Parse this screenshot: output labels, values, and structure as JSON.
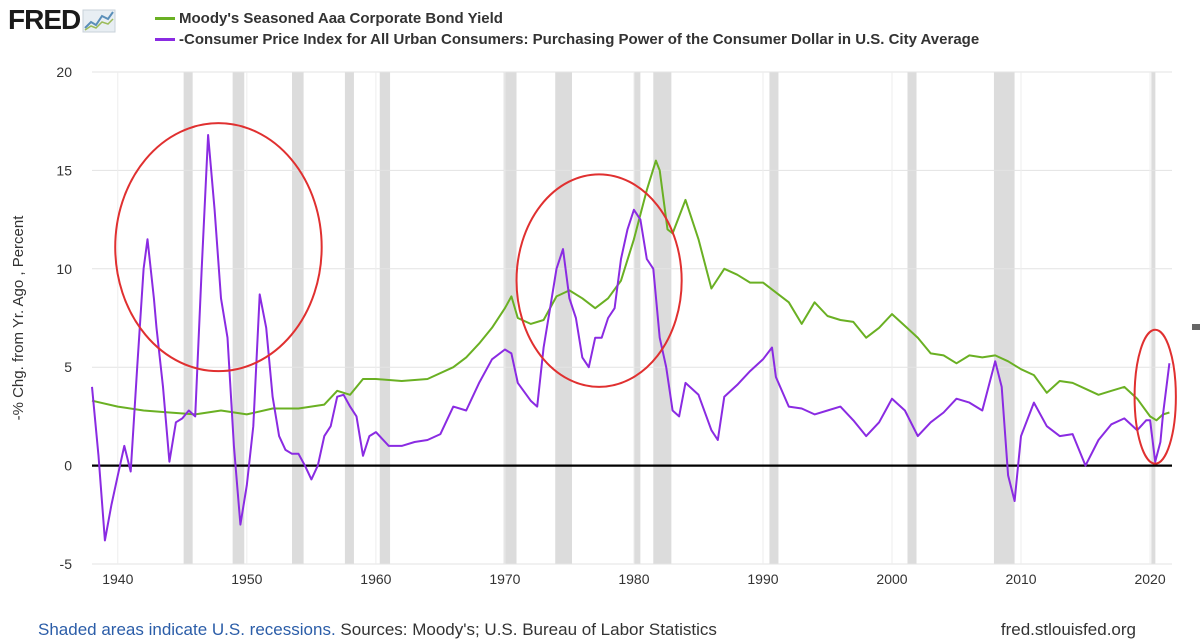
{
  "logo": {
    "text": "FRED",
    "icon": "fred-line-chart-icon"
  },
  "legend": [
    {
      "label": "Moody's Seasoned Aaa Corporate Bond Yield",
      "color": "#6ab023"
    },
    {
      "label": "-Consumer Price Index for All Urban Consumers: Purchasing Power of the Consumer Dollar in U.S. City Average",
      "color": "#8a2be2"
    }
  ],
  "footer": {
    "recession_note": "Shaded areas indicate U.S. recessions.",
    "sources": "Sources: Moody's; U.S. Bureau of Labor Statistics",
    "site": "fred.stlouisfed.org"
  },
  "chart_data": {
    "type": "line",
    "ylabel": "-% Chg. from Yr. Ago , Percent",
    "xlim": [
      1938,
      2021.7
    ],
    "ylim": [
      -5,
      20
    ],
    "x_ticks": [
      1940,
      1950,
      1960,
      1970,
      1980,
      1990,
      2000,
      2010,
      2020
    ],
    "y_ticks": [
      -5,
      0,
      5,
      10,
      15,
      20
    ],
    "grid": true,
    "zero_line": true,
    "recessions": [
      [
        1945.1,
        1945.8
      ],
      [
        1948.9,
        1949.8
      ],
      [
        1953.5,
        1954.4
      ],
      [
        1957.6,
        1958.3
      ],
      [
        1960.3,
        1961.1
      ],
      [
        1969.9,
        1970.9
      ],
      [
        1973.9,
        1975.2
      ],
      [
        1980.0,
        1980.5
      ],
      [
        1981.5,
        1982.9
      ],
      [
        1990.5,
        1991.2
      ],
      [
        2001.2,
        2001.9
      ],
      [
        2007.9,
        2009.5
      ],
      [
        2020.1,
        2020.4
      ]
    ],
    "series": [
      {
        "name": "Moody's Seasoned Aaa Corporate Bond Yield",
        "color": "#6ab023",
        "points": [
          [
            1938,
            3.3
          ],
          [
            1940,
            3.0
          ],
          [
            1942,
            2.8
          ],
          [
            1944,
            2.7
          ],
          [
            1946,
            2.6
          ],
          [
            1948,
            2.8
          ],
          [
            1950,
            2.6
          ],
          [
            1952,
            2.9
          ],
          [
            1954,
            2.9
          ],
          [
            1956,
            3.1
          ],
          [
            1957,
            3.8
          ],
          [
            1958,
            3.6
          ],
          [
            1959,
            4.4
          ],
          [
            1960,
            4.4
          ],
          [
            1962,
            4.3
          ],
          [
            1964,
            4.4
          ],
          [
            1966,
            5.0
          ],
          [
            1967,
            5.5
          ],
          [
            1968,
            6.2
          ],
          [
            1969,
            7.0
          ],
          [
            1970,
            8.0
          ],
          [
            1970.5,
            8.6
          ],
          [
            1971,
            7.5
          ],
          [
            1972,
            7.2
          ],
          [
            1973,
            7.4
          ],
          [
            1974,
            8.6
          ],
          [
            1975,
            8.9
          ],
          [
            1976,
            8.5
          ],
          [
            1977,
            8.0
          ],
          [
            1978,
            8.5
          ],
          [
            1979,
            9.4
          ],
          [
            1980,
            11.5
          ],
          [
            1981,
            14.0
          ],
          [
            1981.7,
            15.5
          ],
          [
            1982,
            15.0
          ],
          [
            1982.6,
            12.0
          ],
          [
            1983,
            11.8
          ],
          [
            1984,
            13.5
          ],
          [
            1985,
            11.5
          ],
          [
            1986,
            9.0
          ],
          [
            1987,
            10.0
          ],
          [
            1988,
            9.7
          ],
          [
            1989,
            9.3
          ],
          [
            1990,
            9.3
          ],
          [
            1991,
            8.8
          ],
          [
            1992,
            8.3
          ],
          [
            1993,
            7.2
          ],
          [
            1994,
            8.3
          ],
          [
            1995,
            7.6
          ],
          [
            1996,
            7.4
          ],
          [
            1997,
            7.3
          ],
          [
            1998,
            6.5
          ],
          [
            1999,
            7.0
          ],
          [
            2000,
            7.7
          ],
          [
            2001,
            7.1
          ],
          [
            2002,
            6.5
          ],
          [
            2003,
            5.7
          ],
          [
            2004,
            5.6
          ],
          [
            2005,
            5.2
          ],
          [
            2006,
            5.6
          ],
          [
            2007,
            5.5
          ],
          [
            2008,
            5.6
          ],
          [
            2009,
            5.3
          ],
          [
            2010,
            4.9
          ],
          [
            2011,
            4.6
          ],
          [
            2012,
            3.7
          ],
          [
            2013,
            4.3
          ],
          [
            2014,
            4.2
          ],
          [
            2015,
            3.9
          ],
          [
            2016,
            3.6
          ],
          [
            2017,
            3.8
          ],
          [
            2018,
            4.0
          ],
          [
            2019,
            3.4
          ],
          [
            2020,
            2.5
          ],
          [
            2020.5,
            2.3
          ],
          [
            2021,
            2.6
          ],
          [
            2021.5,
            2.7
          ]
        ]
      },
      {
        "name": "-Consumer Price Index for All Urban Consumers: Purchasing Power of the Consumer Dollar in U.S. City Average",
        "color": "#8a2be2",
        "points": [
          [
            1938,
            4.0
          ],
          [
            1938.5,
            0.5
          ],
          [
            1939,
            -3.8
          ],
          [
            1939.5,
            -2.0
          ],
          [
            1940,
            -0.5
          ],
          [
            1940.5,
            1.0
          ],
          [
            1941,
            -0.3
          ],
          [
            1941.5,
            5.0
          ],
          [
            1942,
            10.0
          ],
          [
            1942.3,
            11.5
          ],
          [
            1942.8,
            8.5
          ],
          [
            1943,
            7.0
          ],
          [
            1943.5,
            4.0
          ],
          [
            1944,
            0.2
          ],
          [
            1944.5,
            2.2
          ],
          [
            1945,
            2.4
          ],
          [
            1945.5,
            2.8
          ],
          [
            1946,
            2.5
          ],
          [
            1946.5,
            10.0
          ],
          [
            1947,
            16.8
          ],
          [
            1947.5,
            13.0
          ],
          [
            1948,
            8.5
          ],
          [
            1948.5,
            6.5
          ],
          [
            1949,
            1.0
          ],
          [
            1949.5,
            -3.0
          ],
          [
            1950,
            -1.0
          ],
          [
            1950.5,
            2.0
          ],
          [
            1951,
            8.7
          ],
          [
            1951.5,
            7.0
          ],
          [
            1952,
            3.5
          ],
          [
            1952.5,
            1.5
          ],
          [
            1953,
            0.8
          ],
          [
            1953.5,
            0.6
          ],
          [
            1954,
            0.6
          ],
          [
            1954.5,
            0.0
          ],
          [
            1955,
            -0.7
          ],
          [
            1955.5,
            0.0
          ],
          [
            1956,
            1.5
          ],
          [
            1956.5,
            2.0
          ],
          [
            1957,
            3.5
          ],
          [
            1957.5,
            3.6
          ],
          [
            1958,
            3.0
          ],
          [
            1958.5,
            2.5
          ],
          [
            1959,
            0.5
          ],
          [
            1959.5,
            1.5
          ],
          [
            1960,
            1.7
          ],
          [
            1961,
            1.0
          ],
          [
            1962,
            1.0
          ],
          [
            1963,
            1.2
          ],
          [
            1964,
            1.3
          ],
          [
            1965,
            1.6
          ],
          [
            1966,
            3.0
          ],
          [
            1967,
            2.8
          ],
          [
            1968,
            4.2
          ],
          [
            1969,
            5.4
          ],
          [
            1970,
            5.9
          ],
          [
            1970.5,
            5.7
          ],
          [
            1971,
            4.2
          ],
          [
            1972,
            3.3
          ],
          [
            1972.5,
            3.0
          ],
          [
            1973,
            6.0
          ],
          [
            1973.5,
            8.0
          ],
          [
            1974,
            10.0
          ],
          [
            1974.5,
            11.0
          ],
          [
            1975,
            8.5
          ],
          [
            1975.5,
            7.5
          ],
          [
            1976,
            5.5
          ],
          [
            1976.5,
            5.0
          ],
          [
            1977,
            6.5
          ],
          [
            1977.5,
            6.5
          ],
          [
            1978,
            7.5
          ],
          [
            1978.5,
            8.0
          ],
          [
            1979,
            10.5
          ],
          [
            1979.5,
            12.0
          ],
          [
            1980,
            13.0
          ],
          [
            1980.5,
            12.5
          ],
          [
            1981,
            10.5
          ],
          [
            1981.5,
            10.0
          ],
          [
            1982,
            6.5
          ],
          [
            1982.5,
            5.0
          ],
          [
            1983,
            2.8
          ],
          [
            1983.5,
            2.5
          ],
          [
            1984,
            4.2
          ],
          [
            1985,
            3.6
          ],
          [
            1986,
            1.8
          ],
          [
            1986.5,
            1.3
          ],
          [
            1987,
            3.5
          ],
          [
            1988,
            4.1
          ],
          [
            1989,
            4.8
          ],
          [
            1990,
            5.4
          ],
          [
            1990.7,
            6.0
          ],
          [
            1991,
            4.5
          ],
          [
            1992,
            3.0
          ],
          [
            1993,
            2.9
          ],
          [
            1994,
            2.6
          ],
          [
            1995,
            2.8
          ],
          [
            1996,
            3.0
          ],
          [
            1997,
            2.3
          ],
          [
            1998,
            1.5
          ],
          [
            1999,
            2.2
          ],
          [
            2000,
            3.4
          ],
          [
            2001,
            2.8
          ],
          [
            2002,
            1.5
          ],
          [
            2003,
            2.2
          ],
          [
            2004,
            2.7
          ],
          [
            2005,
            3.4
          ],
          [
            2006,
            3.2
          ],
          [
            2007,
            2.8
          ],
          [
            2008,
            5.3
          ],
          [
            2008.5,
            4.0
          ],
          [
            2009,
            -0.5
          ],
          [
            2009.5,
            -1.8
          ],
          [
            2010,
            1.5
          ],
          [
            2011,
            3.2
          ],
          [
            2012,
            2.0
          ],
          [
            2013,
            1.5
          ],
          [
            2014,
            1.6
          ],
          [
            2015,
            0.0
          ],
          [
            2016,
            1.3
          ],
          [
            2017,
            2.1
          ],
          [
            2018,
            2.4
          ],
          [
            2019,
            1.8
          ],
          [
            2019.7,
            2.3
          ],
          [
            2020,
            2.3
          ],
          [
            2020.4,
            0.2
          ],
          [
            2020.8,
            1.2
          ],
          [
            2021,
            2.6
          ],
          [
            2021.5,
            5.2
          ]
        ]
      }
    ]
  },
  "annotations": [
    {
      "type": "ellipse",
      "color": "#e03030",
      "cx_year": 1947.8,
      "cy_value": 11.1,
      "rx_years": 8.0,
      "ry_value": 6.3
    },
    {
      "type": "ellipse",
      "color": "#e03030",
      "cx_year": 1977.3,
      "cy_value": 9.4,
      "rx_years": 6.4,
      "ry_value": 5.4
    },
    {
      "type": "ellipse",
      "color": "#e03030",
      "cx_year": 2020.4,
      "cy_value": 3.5,
      "rx_years": 1.6,
      "ry_value": 3.4
    }
  ]
}
